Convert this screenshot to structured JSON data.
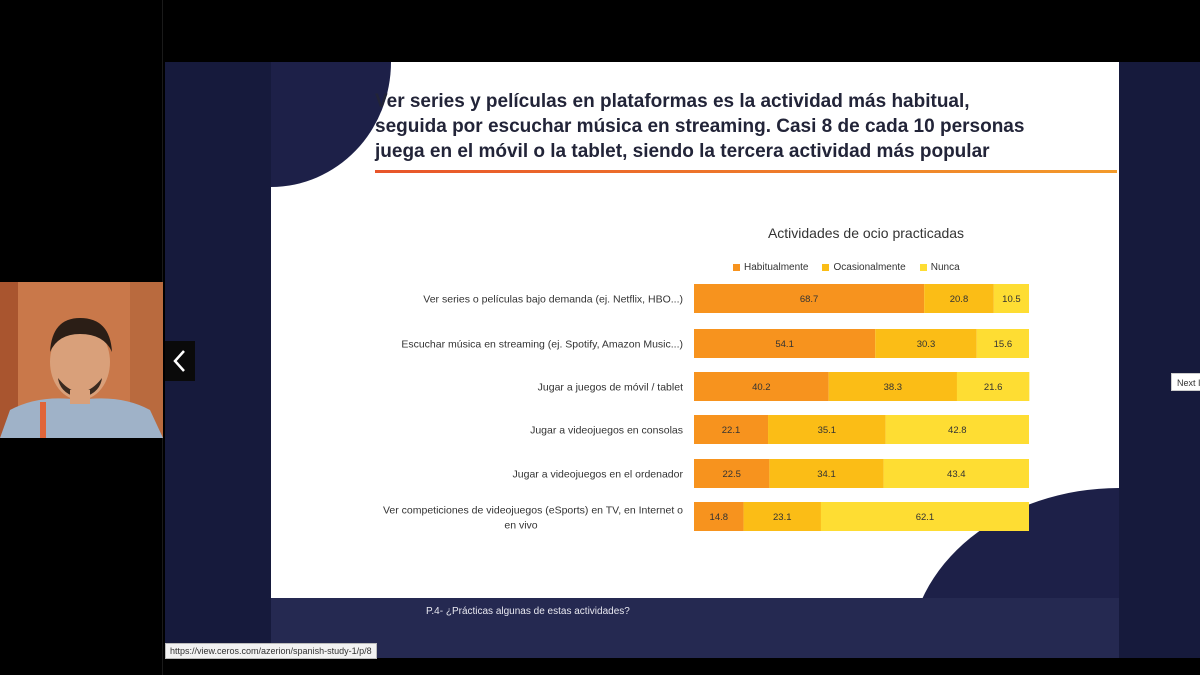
{
  "slide": {
    "title_lines": [
      "Ver series y películas en plataformas es la actividad más habitual,",
      "seguida por escuchar música en streaming. Casi 8 de cada 10 personas",
      "juega en el móvil o la tablet, siendo la tercera actividad más popular"
    ],
    "footer_question": "P.4- ¿Prácticas algunas de estas actividades?"
  },
  "navigation": {
    "prev_icon": "chevron-left-icon",
    "next_tooltip": "Next I"
  },
  "status_bar": {
    "url": "https://view.ceros.com/azerion/spanish-study-1/p/8"
  },
  "colors": {
    "habitualmente": "#f7931e",
    "ocasionalmente": "#fbbd16",
    "nunca": "#fedd33"
  },
  "chart_data": {
    "type": "bar",
    "orientation": "horizontal-stacked-100",
    "title": "Actividades de ocio practicadas",
    "legend_position": "top",
    "categories": [
      "Ver series o películas bajo demanda (ej. Netflix, HBO...)",
      "Escuchar música en streaming (ej. Spotify, Amazon Music...)",
      "Jugar a juegos de móvil / tablet",
      "Jugar a videojuegos en consolas",
      "Jugar a videojuegos en el ordenador",
      "Ver competiciones de videojuegos (eSports) en TV, en Internet o en vivo"
    ],
    "category_lines": [
      [
        "Ver series o películas bajo demanda (ej. Netflix, HBO...)"
      ],
      [
        "Escuchar música en streaming (ej. Spotify, Amazon Music...)"
      ],
      [
        "Jugar a juegos de móvil / tablet"
      ],
      [
        "Jugar a videojuegos en consolas"
      ],
      [
        "Jugar a videojuegos en el ordenador"
      ],
      [
        "Ver competiciones de videojuegos (eSports) en TV, en Internet o",
        "en vivo"
      ]
    ],
    "series": [
      {
        "name": "Habitualmente",
        "values": [
          68.7,
          54.1,
          40.2,
          22.1,
          22.5,
          14.8
        ]
      },
      {
        "name": "Ocasionalmente",
        "values": [
          20.8,
          30.3,
          38.3,
          35.1,
          34.1,
          23.1
        ]
      },
      {
        "name": "Nunca",
        "values": [
          10.5,
          15.6,
          21.6,
          42.8,
          43.4,
          62.1
        ]
      }
    ],
    "xlim": [
      0,
      100
    ]
  }
}
